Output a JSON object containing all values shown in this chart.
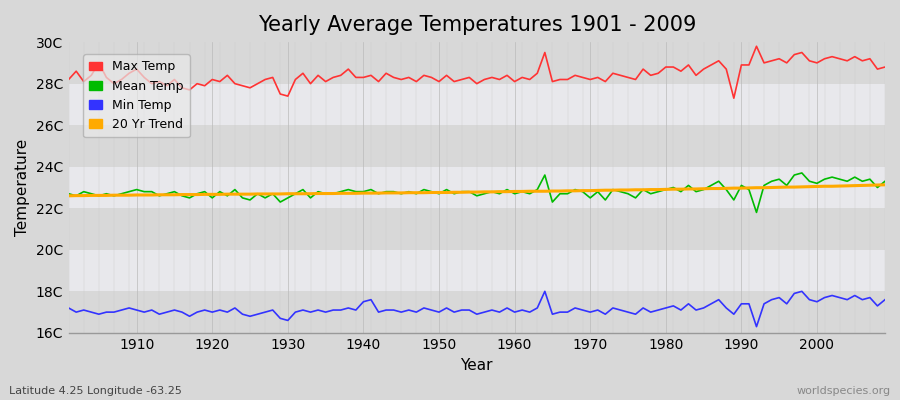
{
  "title": "Yearly Average Temperatures 1901 - 2009",
  "xlabel": "Year",
  "ylabel": "Temperature",
  "footnote_left": "Latitude 4.25 Longitude -63.25",
  "footnote_right": "worldspecies.org",
  "years": [
    1901,
    1902,
    1903,
    1904,
    1905,
    1906,
    1907,
    1908,
    1909,
    1910,
    1911,
    1912,
    1913,
    1914,
    1915,
    1916,
    1917,
    1918,
    1919,
    1920,
    1921,
    1922,
    1923,
    1924,
    1925,
    1926,
    1927,
    1928,
    1929,
    1930,
    1931,
    1932,
    1933,
    1934,
    1935,
    1936,
    1937,
    1938,
    1939,
    1940,
    1941,
    1942,
    1943,
    1944,
    1945,
    1946,
    1947,
    1948,
    1949,
    1950,
    1951,
    1952,
    1953,
    1954,
    1955,
    1956,
    1957,
    1958,
    1959,
    1960,
    1961,
    1962,
    1963,
    1964,
    1965,
    1966,
    1967,
    1968,
    1969,
    1970,
    1971,
    1972,
    1973,
    1974,
    1975,
    1976,
    1977,
    1978,
    1979,
    1980,
    1981,
    1982,
    1983,
    1984,
    1985,
    1986,
    1987,
    1988,
    1989,
    1990,
    1991,
    1992,
    1993,
    1994,
    1995,
    1996,
    1997,
    1998,
    1999,
    2000,
    2001,
    2002,
    2003,
    2004,
    2005,
    2006,
    2007,
    2008,
    2009
  ],
  "max_temp": [
    28.2,
    28.6,
    28.1,
    28.4,
    29.0,
    28.3,
    28.0,
    28.2,
    28.5,
    28.7,
    28.3,
    28.0,
    28.1,
    27.9,
    28.2,
    27.8,
    27.7,
    28.0,
    27.9,
    28.2,
    28.1,
    28.4,
    28.0,
    27.9,
    27.8,
    28.0,
    28.2,
    28.3,
    27.5,
    27.4,
    28.2,
    28.5,
    28.0,
    28.4,
    28.1,
    28.3,
    28.4,
    28.7,
    28.3,
    28.3,
    28.4,
    28.1,
    28.5,
    28.3,
    28.2,
    28.3,
    28.1,
    28.4,
    28.3,
    28.1,
    28.4,
    28.1,
    28.2,
    28.3,
    28.0,
    28.2,
    28.3,
    28.2,
    28.4,
    28.1,
    28.3,
    28.2,
    28.5,
    29.5,
    28.1,
    28.2,
    28.2,
    28.4,
    28.3,
    28.2,
    28.3,
    28.1,
    28.5,
    28.4,
    28.3,
    28.2,
    28.7,
    28.4,
    28.5,
    28.8,
    28.8,
    28.6,
    28.9,
    28.4,
    28.7,
    28.9,
    29.1,
    28.7,
    27.3,
    28.9,
    28.9,
    29.8,
    29.0,
    29.1,
    29.2,
    29.0,
    29.4,
    29.5,
    29.1,
    29.0,
    29.2,
    29.3,
    29.2,
    29.1,
    29.3,
    29.1,
    29.2,
    28.7,
    28.8
  ],
  "mean_temp": [
    22.7,
    22.6,
    22.8,
    22.7,
    22.6,
    22.7,
    22.6,
    22.7,
    22.8,
    22.9,
    22.8,
    22.8,
    22.6,
    22.7,
    22.8,
    22.6,
    22.5,
    22.7,
    22.8,
    22.5,
    22.8,
    22.6,
    22.9,
    22.5,
    22.4,
    22.7,
    22.5,
    22.7,
    22.3,
    22.5,
    22.7,
    22.9,
    22.5,
    22.8,
    22.7,
    22.7,
    22.8,
    22.9,
    22.8,
    22.8,
    22.9,
    22.7,
    22.8,
    22.8,
    22.7,
    22.8,
    22.7,
    22.9,
    22.8,
    22.7,
    22.9,
    22.7,
    22.8,
    22.8,
    22.6,
    22.7,
    22.8,
    22.7,
    22.9,
    22.7,
    22.8,
    22.7,
    22.9,
    23.6,
    22.3,
    22.7,
    22.7,
    22.9,
    22.8,
    22.5,
    22.8,
    22.4,
    22.9,
    22.8,
    22.7,
    22.5,
    22.9,
    22.7,
    22.8,
    22.9,
    23.0,
    22.8,
    23.1,
    22.8,
    22.9,
    23.1,
    23.3,
    22.9,
    22.4,
    23.1,
    22.9,
    21.8,
    23.1,
    23.3,
    23.4,
    23.1,
    23.6,
    23.7,
    23.3,
    23.2,
    23.4,
    23.5,
    23.4,
    23.3,
    23.5,
    23.3,
    23.4,
    23.0,
    23.3
  ],
  "min_temp": [
    17.2,
    17.0,
    17.1,
    17.0,
    16.9,
    17.0,
    17.0,
    17.1,
    17.2,
    17.1,
    17.0,
    17.1,
    16.9,
    17.0,
    17.1,
    17.0,
    16.8,
    17.0,
    17.1,
    17.0,
    17.1,
    17.0,
    17.2,
    16.9,
    16.8,
    16.9,
    17.0,
    17.1,
    16.7,
    16.6,
    17.0,
    17.1,
    17.0,
    17.1,
    17.0,
    17.1,
    17.1,
    17.2,
    17.1,
    17.5,
    17.6,
    17.0,
    17.1,
    17.1,
    17.0,
    17.1,
    17.0,
    17.2,
    17.1,
    17.0,
    17.2,
    17.0,
    17.1,
    17.1,
    16.9,
    17.0,
    17.1,
    17.0,
    17.2,
    17.0,
    17.1,
    17.0,
    17.2,
    18.0,
    16.9,
    17.0,
    17.0,
    17.2,
    17.1,
    17.0,
    17.1,
    16.9,
    17.2,
    17.1,
    17.0,
    16.9,
    17.2,
    17.0,
    17.1,
    17.2,
    17.3,
    17.1,
    17.4,
    17.1,
    17.2,
    17.4,
    17.6,
    17.2,
    16.9,
    17.4,
    17.4,
    16.3,
    17.4,
    17.6,
    17.7,
    17.4,
    17.9,
    18.0,
    17.6,
    17.5,
    17.7,
    17.8,
    17.7,
    17.6,
    17.8,
    17.6,
    17.7,
    17.3,
    17.6
  ],
  "trend": [
    22.6,
    22.61,
    22.61,
    22.62,
    22.62,
    22.62,
    22.63,
    22.63,
    22.63,
    22.64,
    22.64,
    22.64,
    22.65,
    22.65,
    22.65,
    22.66,
    22.66,
    22.66,
    22.67,
    22.67,
    22.67,
    22.68,
    22.68,
    22.68,
    22.68,
    22.69,
    22.69,
    22.69,
    22.69,
    22.7,
    22.7,
    22.7,
    22.7,
    22.71,
    22.71,
    22.71,
    22.72,
    22.72,
    22.72,
    22.73,
    22.73,
    22.73,
    22.74,
    22.74,
    22.74,
    22.75,
    22.75,
    22.75,
    22.76,
    22.76,
    22.76,
    22.77,
    22.77,
    22.78,
    22.78,
    22.79,
    22.79,
    22.8,
    22.8,
    22.81,
    22.81,
    22.82,
    22.82,
    22.82,
    22.83,
    22.83,
    22.84,
    22.84,
    22.85,
    22.85,
    22.86,
    22.87,
    22.87,
    22.88,
    22.88,
    22.89,
    22.89,
    22.9,
    22.9,
    22.91,
    22.92,
    22.92,
    22.93,
    22.93,
    22.94,
    22.95,
    22.95,
    22.96,
    22.97,
    22.97,
    22.98,
    22.99,
    22.99,
    23.0,
    23.01,
    23.02,
    23.02,
    23.03,
    23.04,
    23.05,
    23.06,
    23.06,
    23.07,
    23.08,
    23.09,
    23.1,
    23.11,
    23.12,
    23.13
  ],
  "max_color": "#ff3333",
  "mean_color": "#00bb00",
  "min_color": "#3333ff",
  "trend_color": "#ffaa00",
  "bg_color": "#d8d8d8",
  "plot_bg": "#e0e0e8",
  "grid_color": "#ffffff",
  "band_color": "#cccccc",
  "ylim": [
    16,
    30
  ],
  "yticks": [
    16,
    18,
    20,
    22,
    24,
    26,
    28,
    30
  ],
  "ytick_labels": [
    "16C",
    "18C",
    "20C",
    "22C",
    "24C",
    "26C",
    "28C",
    "30C"
  ],
  "title_fontsize": 15,
  "axis_fontsize": 10,
  "legend_fontsize": 9,
  "linewidth": 1.2
}
